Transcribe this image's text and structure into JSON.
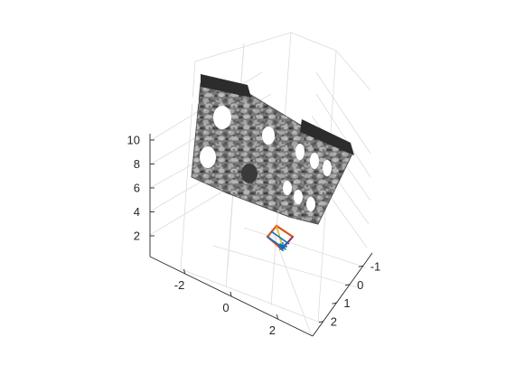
{
  "chart_data": {
    "type": "3d-scatter",
    "title": "",
    "xlabel": "",
    "ylabel": "",
    "zlabel": "",
    "grid": true,
    "colormap": "gray",
    "x_ticks": [
      -2,
      0,
      2
    ],
    "x_tick_labels": [
      "-2",
      "0",
      "2"
    ],
    "y_ticks": [
      -1,
      0,
      1,
      2
    ],
    "y_tick_labels": [
      "-1",
      "0",
      "1",
      "2"
    ],
    "z_ticks": [
      2,
      4,
      6,
      8,
      10
    ],
    "z_tick_labels": [
      "2",
      "4",
      "6",
      "8",
      "10"
    ],
    "series": [
      {
        "name": "point cloud",
        "description_shape": "textured stone wall with arched window openings",
        "color": "#808080"
      },
      {
        "name": "camera pose",
        "shape": "pyramid outline",
        "colors": [
          "#d95319",
          "#0072bd",
          "#edb120",
          "#7e2f8e"
        ],
        "marker": "*",
        "marker_color": "#0072bd"
      }
    ]
  }
}
